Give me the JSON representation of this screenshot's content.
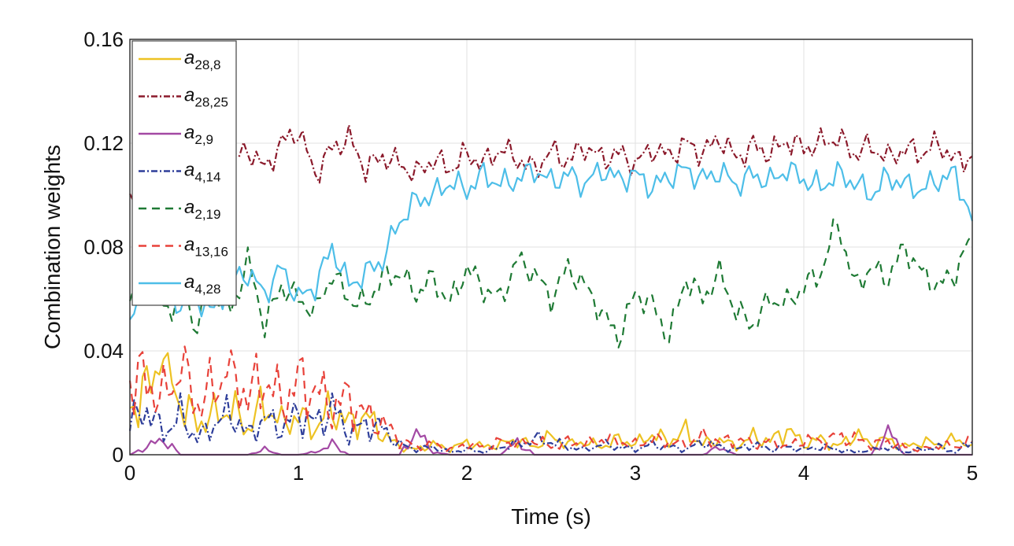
{
  "chart_data": {
    "type": "line",
    "title": "",
    "xlabel": "Time (s)",
    "ylabel": "Combination weights",
    "xlim": [
      0,
      5
    ],
    "ylim": [
      0,
      0.16
    ],
    "xticks": [
      "0",
      "1",
      "2",
      "3",
      "4",
      "5"
    ],
    "yticks": [
      "0",
      "0.04",
      "0.08",
      "0.12",
      "0.16"
    ],
    "grid": true,
    "legend_position": "top-left",
    "x": [
      0,
      0.1,
      0.2,
      0.3,
      0.4,
      0.5,
      0.6,
      0.7,
      0.8,
      0.9,
      1,
      1.1,
      1.2,
      1.3,
      1.4,
      1.5,
      1.6,
      1.7,
      1.8,
      1.9,
      2,
      2.1,
      2.2,
      2.3,
      2.4,
      2.5,
      2.6,
      2.7,
      2.8,
      2.9,
      3,
      3.1,
      3.2,
      3.3,
      3.4,
      3.5,
      3.6,
      3.7,
      3.8,
      3.9,
      4,
      4.1,
      4.2,
      4.3,
      4.4,
      4.5,
      4.6,
      4.7,
      4.8,
      4.9,
      5
    ],
    "series": [
      {
        "name": "a",
        "sub": "28,8",
        "color": "#EDC223",
        "dash": "",
        "values": [
          0.018,
          0.025,
          0.038,
          0.02,
          0.012,
          0.015,
          0.018,
          0.01,
          0.02,
          0.012,
          0.015,
          0.01,
          0.018,
          0.012,
          0.015,
          0.008,
          0.003,
          0.002,
          0.004,
          0.002,
          0.005,
          0.003,
          0.004,
          0.006,
          0.003,
          0.007,
          0.004,
          0.005,
          0.003,
          0.006,
          0.004,
          0.008,
          0.005,
          0.009,
          0.004,
          0.006,
          0.003,
          0.007,
          0.005,
          0.01,
          0.004,
          0.006,
          0.003,
          0.008,
          0.004,
          0.006,
          0.003,
          0.005,
          0.004,
          0.006,
          0.004
        ]
      },
      {
        "name": "a",
        "sub": "28,25",
        "color": "#8B1A2B",
        "dash": "8,3,2,3",
        "values": [
          0.095,
          0.115,
          0.11,
          0.12,
          0.108,
          0.115,
          0.112,
          0.118,
          0.11,
          0.12,
          0.125,
          0.108,
          0.118,
          0.122,
          0.11,
          0.115,
          0.112,
          0.108,
          0.114,
          0.11,
          0.116,
          0.112,
          0.118,
          0.114,
          0.11,
          0.117,
          0.113,
          0.119,
          0.114,
          0.116,
          0.112,
          0.118,
          0.115,
          0.12,
          0.116,
          0.122,
          0.114,
          0.119,
          0.116,
          0.121,
          0.118,
          0.12,
          0.122,
          0.116,
          0.119,
          0.114,
          0.118,
          0.116,
          0.12,
          0.113,
          0.115
        ]
      },
      {
        "name": "a",
        "sub": "2,9",
        "color": "#A349A4",
        "dash": "",
        "values": [
          0,
          0.003,
          0.006,
          0,
          0,
          0,
          0,
          0,
          0.002,
          0,
          0,
          0.001,
          0.004,
          0,
          0,
          0,
          0,
          0.009,
          0.001,
          0,
          0,
          0,
          0,
          0.005,
          0,
          0,
          0,
          0,
          0,
          0,
          0,
          0,
          0,
          0,
          0,
          0.003,
          0,
          0,
          0,
          0,
          0,
          0,
          0,
          0,
          0,
          0.009,
          0,
          0,
          0,
          0,
          0
        ]
      },
      {
        "name": "a",
        "sub": "4,14",
        "color": "#2E3E9A",
        "dash": "8,3,2,3",
        "values": [
          0.012,
          0.018,
          0.008,
          0.015,
          0.006,
          0.012,
          0.016,
          0.008,
          0.014,
          0.01,
          0.016,
          0.012,
          0.018,
          0.008,
          0.012,
          0.01,
          0.004,
          0.002,
          0.003,
          0.001,
          0.002,
          0.001,
          0.003,
          0.004,
          0.006,
          0.005,
          0.003,
          0.002,
          0.004,
          0.003,
          0.002,
          0.004,
          0.003,
          0.002,
          0.005,
          0.003,
          0.002,
          0.004,
          0.002,
          0.003,
          0.002,
          0.003,
          0.002,
          0.001,
          0.002,
          0.003,
          0.001,
          0.002,
          0.003,
          0.001,
          0.005
        ]
      },
      {
        "name": "a",
        "sub": "2,19",
        "color": "#1E7A34",
        "dash": "10,7",
        "values": [
          0.06,
          0.07,
          0.055,
          0.06,
          0.05,
          0.065,
          0.055,
          0.075,
          0.05,
          0.065,
          0.06,
          0.055,
          0.07,
          0.06,
          0.058,
          0.068,
          0.07,
          0.062,
          0.068,
          0.058,
          0.072,
          0.064,
          0.06,
          0.075,
          0.07,
          0.06,
          0.072,
          0.065,
          0.055,
          0.045,
          0.062,
          0.058,
          0.045,
          0.068,
          0.06,
          0.07,
          0.055,
          0.05,
          0.06,
          0.058,
          0.065,
          0.07,
          0.09,
          0.065,
          0.072,
          0.068,
          0.08,
          0.07,
          0.065,
          0.07,
          0.085
        ]
      },
      {
        "name": "a",
        "sub": "13,16",
        "color": "#E8423A",
        "dash": "10,7",
        "values": [
          0.03,
          0.028,
          0.022,
          0.032,
          0.02,
          0.025,
          0.035,
          0.022,
          0.03,
          0.02,
          0.028,
          0.025,
          0.018,
          0.022,
          0.015,
          0.012,
          0.006,
          0.003,
          0.004,
          0.002,
          0.004,
          0.003,
          0.005,
          0.004,
          0.006,
          0.003,
          0.005,
          0.004,
          0.006,
          0.005,
          0.004,
          0.006,
          0.005,
          0.004,
          0.007,
          0.005,
          0.006,
          0.004,
          0.005,
          0.003,
          0.006,
          0.005,
          0.007,
          0.006,
          0.004,
          0.005,
          0.003,
          0.002,
          0.004,
          0.003,
          0.005
        ]
      },
      {
        "name": "a",
        "sub": "4,28",
        "color": "#4DBEE8",
        "dash": "",
        "values": [
          0.055,
          0.065,
          0.062,
          0.058,
          0.06,
          0.055,
          0.068,
          0.07,
          0.062,
          0.072,
          0.06,
          0.065,
          0.08,
          0.065,
          0.07,
          0.075,
          0.09,
          0.098,
          0.1,
          0.105,
          0.102,
          0.108,
          0.104,
          0.106,
          0.11,
          0.105,
          0.108,
          0.104,
          0.11,
          0.106,
          0.108,
          0.103,
          0.107,
          0.11,
          0.106,
          0.109,
          0.104,
          0.108,
          0.105,
          0.11,
          0.106,
          0.103,
          0.108,
          0.105,
          0.1,
          0.107,
          0.104,
          0.102,
          0.106,
          0.108,
          0.09
        ]
      }
    ]
  }
}
